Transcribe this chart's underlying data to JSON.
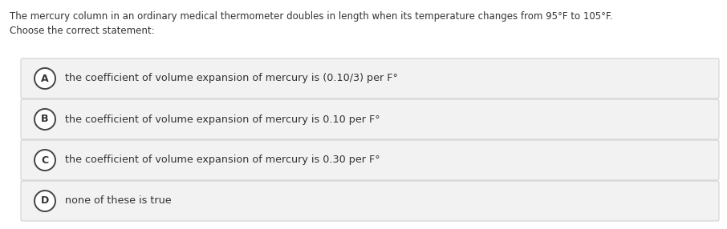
{
  "title_line1": "The mercury column in an ordinary medical thermometer doubles in length when its temperature changes from 95°F to 105°F.",
  "title_line2": "Choose the correct statement:",
  "options": [
    {
      "label": "A",
      "text": "the coefficient of volume expansion of mercury is (0.10/3) per F°"
    },
    {
      "label": "B",
      "text": "the coefficient of volume expansion of mercury is 0.10 per F°"
    },
    {
      "label": "C",
      "text": "the coefficient of volume expansion of mercury is 0.30 per F°"
    },
    {
      "label": "D",
      "text": "none of these is true"
    }
  ],
  "bg_color": "#ffffff",
  "option_bg_color": "#f2f2f2",
  "option_border_color": "#cccccc",
  "text_color": "#333333",
  "circle_edge_color": "#444444",
  "circle_face_color": "#ffffff",
  "label_color": "#333333",
  "title_fontsize": 8.5,
  "option_fontsize": 9.2,
  "label_fontsize": 9.0,
  "fig_width": 9.06,
  "fig_height": 2.86,
  "dpi": 100
}
